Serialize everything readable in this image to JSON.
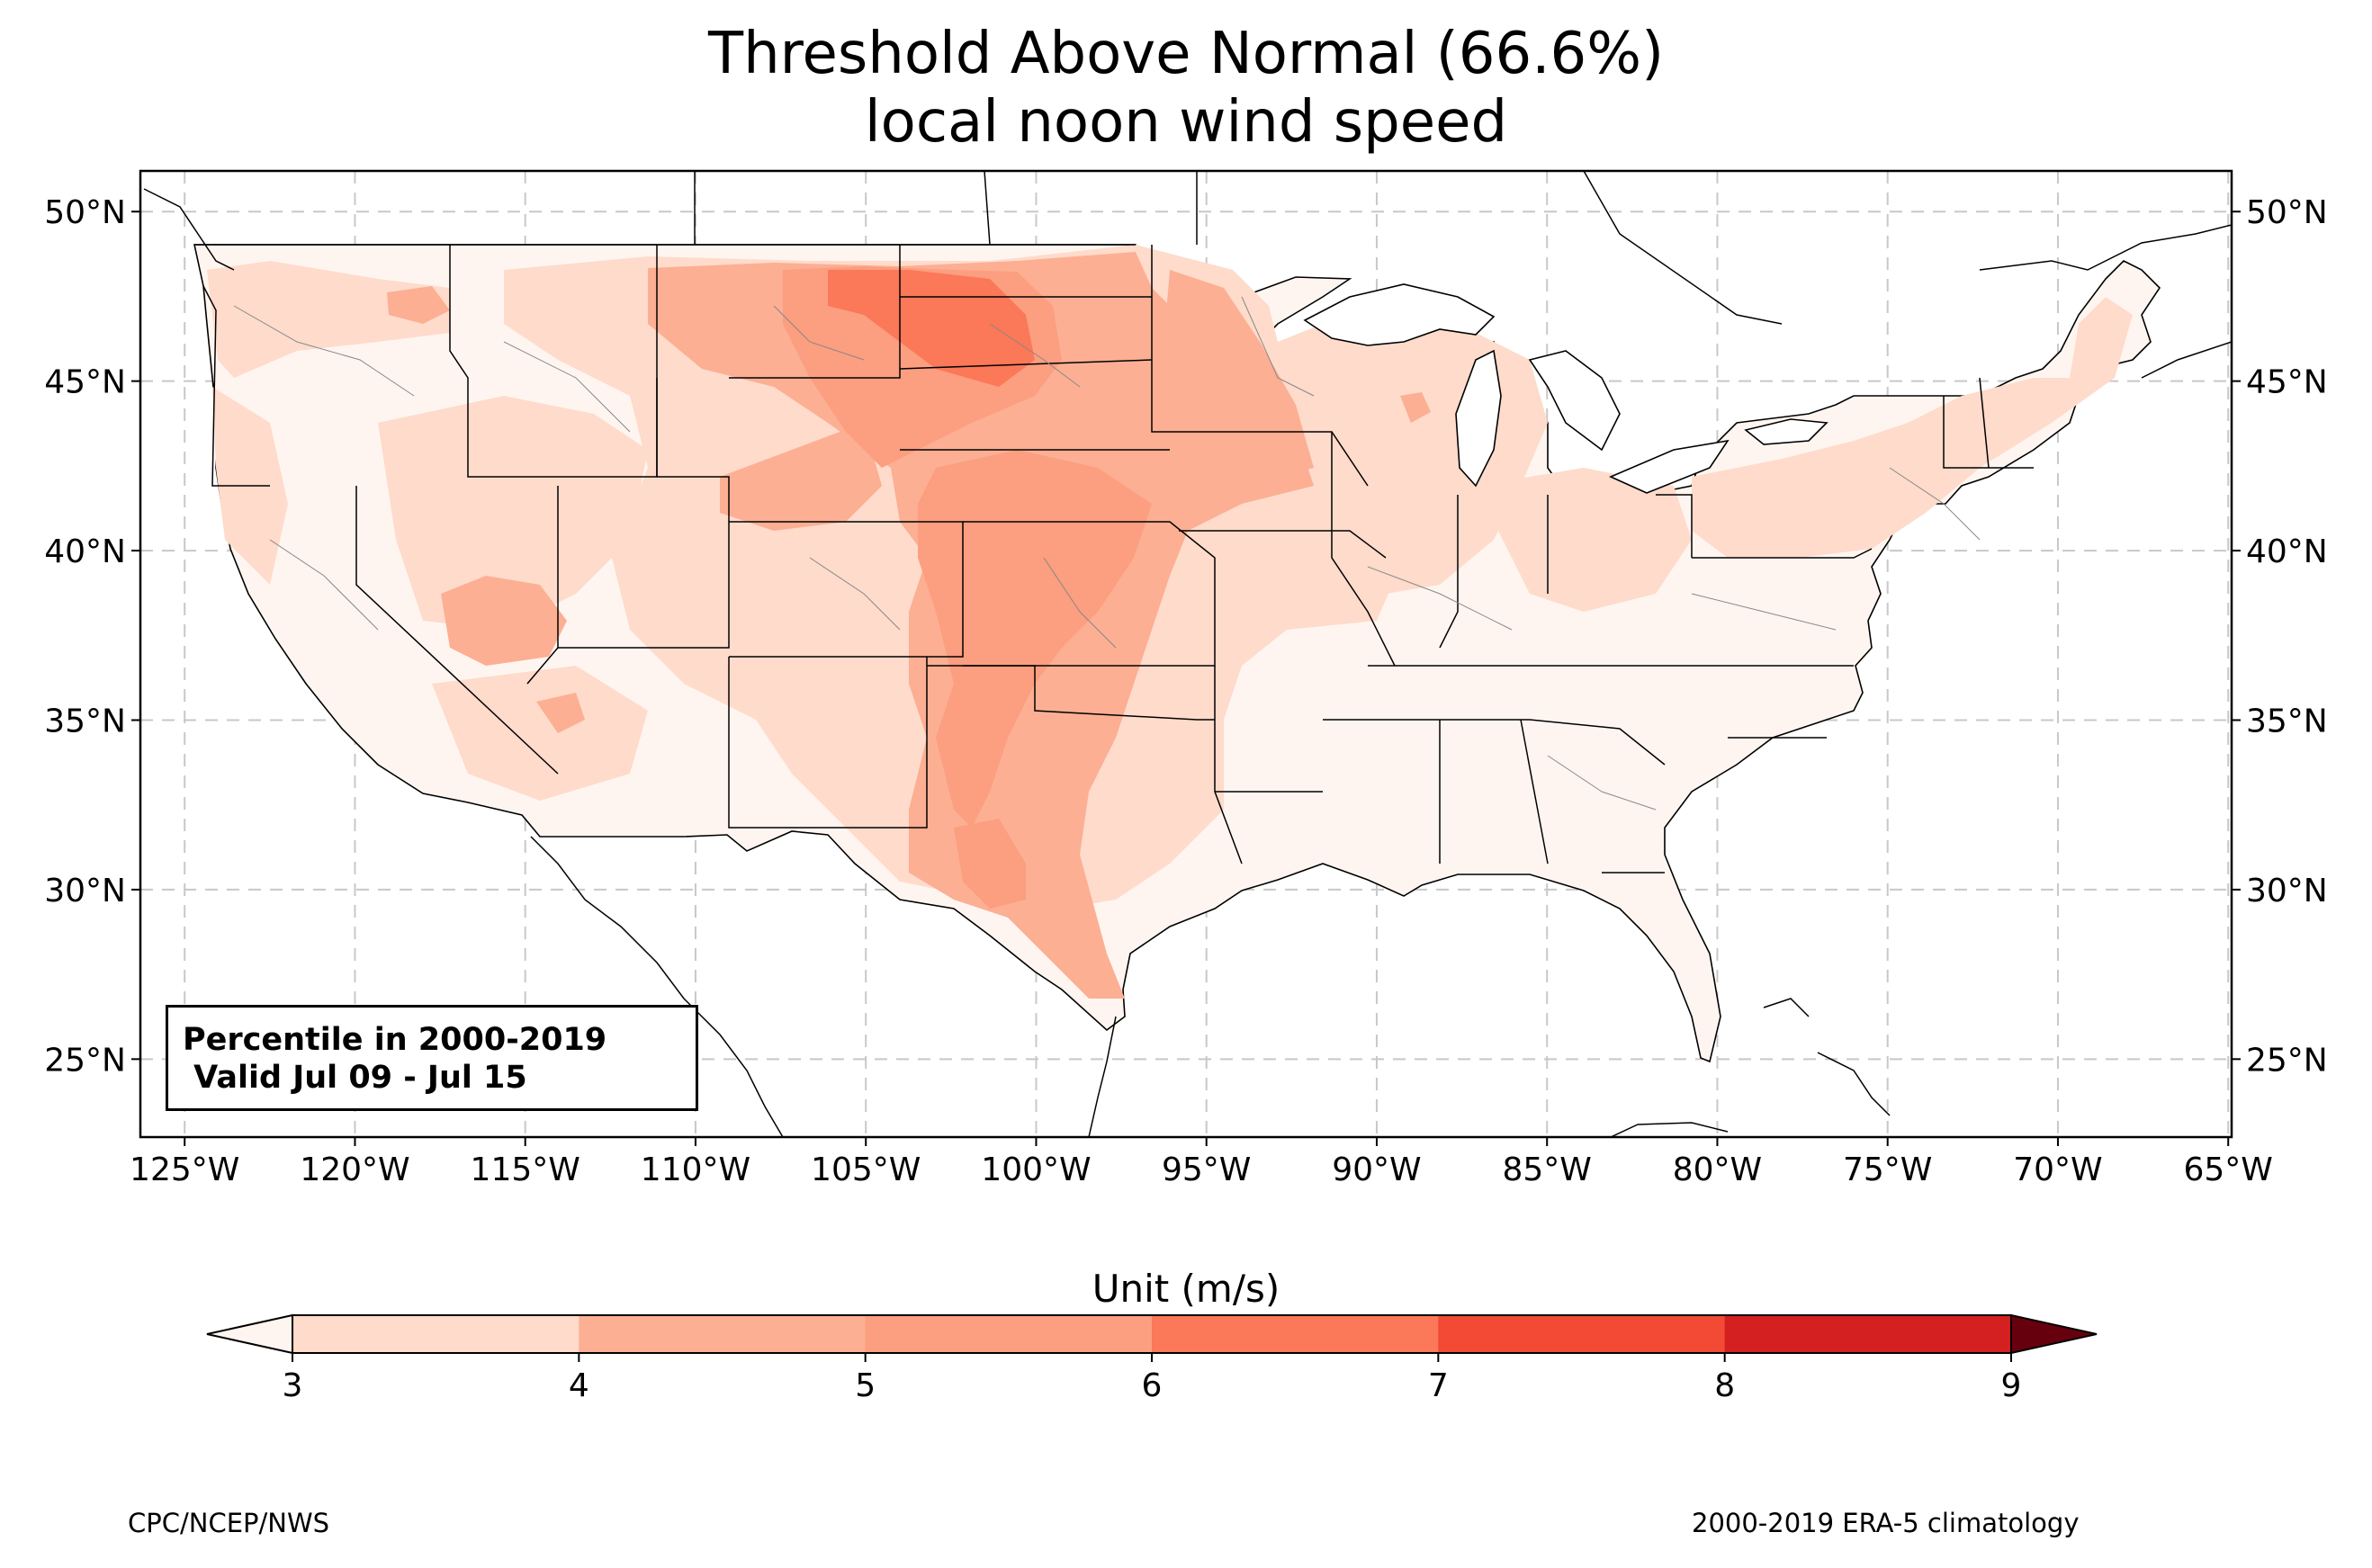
{
  "title": {
    "line1": "Threshold Above Normal (66.6%)",
    "line2": "local noon wind speed"
  },
  "map": {
    "lon_range": [
      -126.3,
      -64.9
    ],
    "lat_range": [
      22.7,
      51.2
    ],
    "lon_ticks": [
      {
        "value": -125,
        "label": "125°W"
      },
      {
        "value": -120,
        "label": "120°W"
      },
      {
        "value": -115,
        "label": "115°W"
      },
      {
        "value": -110,
        "label": "110°W"
      },
      {
        "value": -105,
        "label": "105°W"
      },
      {
        "value": -100,
        "label": "100°W"
      },
      {
        "value": -95,
        "label": "95°W"
      },
      {
        "value": -90,
        "label": "90°W"
      },
      {
        "value": -85,
        "label": "85°W"
      },
      {
        "value": -80,
        "label": "80°W"
      },
      {
        "value": -75,
        "label": "75°W"
      },
      {
        "value": -70,
        "label": "70°W"
      },
      {
        "value": -65,
        "label": "65°W"
      }
    ],
    "lat_ticks": [
      {
        "value": 50,
        "label": "50°N"
      },
      {
        "value": 45,
        "label": "45°N"
      },
      {
        "value": 40,
        "label": "40°N"
      },
      {
        "value": 35,
        "label": "35°N"
      },
      {
        "value": 30,
        "label": "30°N"
      },
      {
        "value": 25,
        "label": "25°N"
      }
    ],
    "gridlines": true
  },
  "info_box": {
    "line1": "Percentile in 2000-2019",
    "line2": " Valid Jul 09 - Jul 15"
  },
  "colorbar": {
    "title": "Unit (m/s)",
    "levels": [
      3,
      4,
      5,
      6,
      7,
      8,
      9
    ],
    "colors": [
      "#fedbcb",
      "#fcaf93",
      "#fc9e80",
      "#fb7858",
      "#f24a35",
      "#d42020",
      "#a91016"
    ],
    "under_color": "#fff5f0",
    "over_color": "#67000d",
    "extend": "both"
  },
  "footer": {
    "left": "CPC/NCEP/NWS",
    "right": "2000-2019 ERA-5 climatology"
  },
  "colors": {
    "land_base": "#fff5f0",
    "level_3_4": "#fedbcb",
    "level_4_5": "#fcaf93",
    "level_5_6": "#fc9e80",
    "level_6_7": "#fb7858"
  }
}
